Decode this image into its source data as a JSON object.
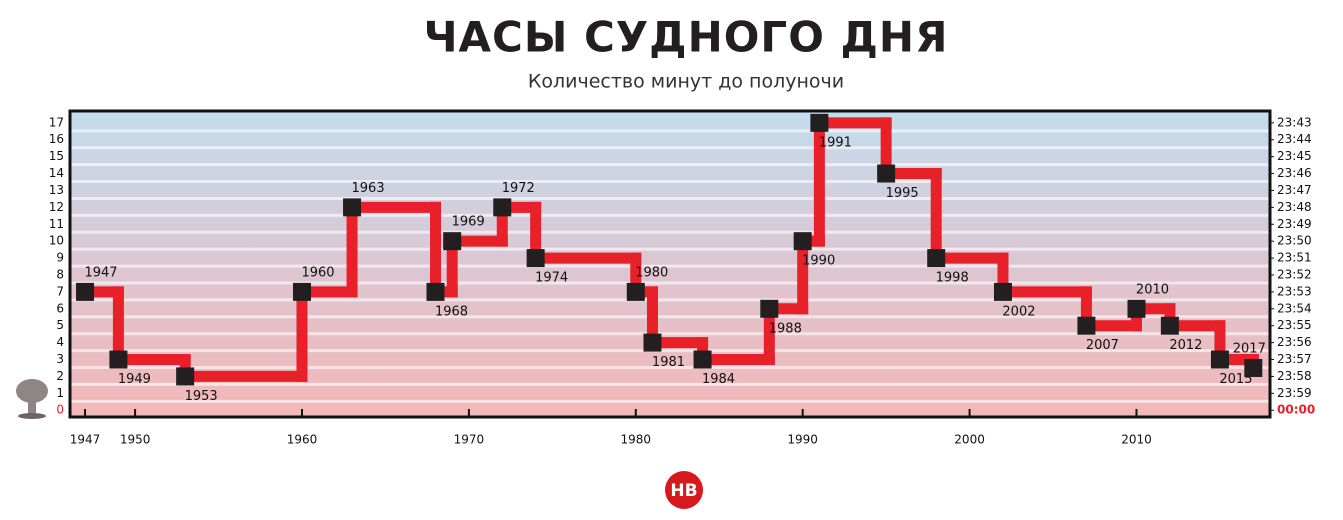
{
  "chart_data": {
    "type": "step",
    "title": "ЧАСЫ СУДНОГО ДНЯ",
    "subtitle": "Количество минут до полуночи",
    "logo": "НВ",
    "x": [
      1947,
      1949,
      1953,
      1960,
      1963,
      1968,
      1969,
      1972,
      1974,
      1980,
      1981,
      1984,
      1988,
      1990,
      1991,
      1995,
      1998,
      2002,
      2007,
      2010,
      2012,
      2015,
      2017
    ],
    "values": [
      7,
      3,
      2,
      7,
      12,
      7,
      10,
      12,
      9,
      7,
      4,
      3,
      6,
      10,
      17,
      14,
      9,
      7,
      5,
      6,
      5,
      3,
      2.5
    ],
    "color": "#e8202a",
    "marker_color": "#231f20",
    "xlim": [
      1946.1,
      2018
    ],
    "xticks": [
      1947,
      1950,
      1960,
      1970,
      1980,
      1990,
      2000,
      2010
    ],
    "ylim": [
      -0.4,
      17.7
    ],
    "yticks": [
      0,
      1,
      2,
      3,
      4,
      5,
      6,
      7,
      8,
      9,
      10,
      11,
      12,
      13,
      14,
      15,
      16,
      17
    ],
    "y2lim": [
      -0.4,
      17.7
    ],
    "y2ticks": [
      {
        "value": 17,
        "label": "23:43"
      },
      {
        "value": 16,
        "label": "23:44"
      },
      {
        "value": 15,
        "label": "23:45"
      },
      {
        "value": 14,
        "label": "23:46"
      },
      {
        "value": 13,
        "label": "23:47"
      },
      {
        "value": 12,
        "label": "23:48"
      },
      {
        "value": 11,
        "label": "23:49"
      },
      {
        "value": 10,
        "label": "23:50"
      },
      {
        "value": 9,
        "label": "23:51"
      },
      {
        "value": 8,
        "label": "23:52"
      },
      {
        "value": 7,
        "label": "23:53"
      },
      {
        "value": 6,
        "label": "23:54"
      },
      {
        "value": 5,
        "label": "23:55"
      },
      {
        "value": 4,
        "label": "23:56"
      },
      {
        "value": 3,
        "label": "23:57"
      },
      {
        "value": 2,
        "label": "23:58"
      },
      {
        "value": 1,
        "label": "23:59"
      },
      {
        "value": 0,
        "label": "00:00"
      }
    ],
    "grid": true
  }
}
